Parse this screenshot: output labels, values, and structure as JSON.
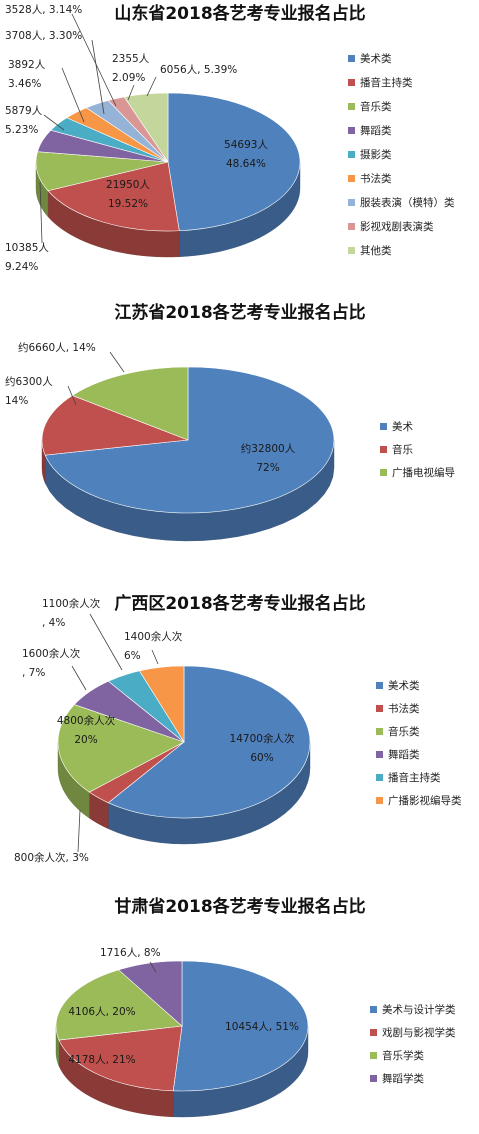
{
  "chart_data": [
    {
      "type": "pie",
      "title": "山东省2018各艺考专业报名占比",
      "series": [
        {
          "name": "美术类",
          "value": 54693,
          "percent": 48.64,
          "color": "#4F81BD"
        },
        {
          "name": "播音主持类",
          "value": 21950,
          "percent": 19.52,
          "color": "#C0504D"
        },
        {
          "name": "音乐类",
          "value": 10385,
          "percent": 9.24,
          "color": "#9BBB59"
        },
        {
          "name": "舞蹈类",
          "value": 5879,
          "percent": 5.23,
          "color": "#8064A2"
        },
        {
          "name": "摄影类",
          "value": 3892,
          "percent": 3.46,
          "color": "#4BACC6"
        },
        {
          "name": "书法类",
          "value": 3708,
          "percent": 3.3,
          "color": "#F79646"
        },
        {
          "name": "服装表演（模特）类",
          "value": 3528,
          "percent": 3.14,
          "color": "#95B3D7"
        },
        {
          "name": "影视戏剧表演类",
          "value": 2355,
          "percent": 2.09,
          "color": "#D99694"
        },
        {
          "name": "其他类",
          "value": 6056,
          "percent": 5.39,
          "color": "#C3D69B"
        }
      ],
      "labels": [
        {
          "line1": "54693人",
          "line2": "48.64%"
        },
        {
          "line1": "21950人",
          "line2": "19.52%"
        },
        {
          "line1": "10385人",
          "line2": "9.24%"
        },
        {
          "line1": "5879人",
          "line2": "5.23%"
        },
        {
          "line1": "3892人",
          "line2": "3.46%"
        },
        {
          "line1": "3708人, 3.30%",
          "line2": ""
        },
        {
          "line1": "3528人, 3.14%",
          "line2": ""
        },
        {
          "line1": "2355人",
          "line2": "2.09%"
        },
        {
          "line1": "6056人, 5.39%",
          "line2": ""
        }
      ]
    },
    {
      "type": "pie",
      "title": "江苏省2018各艺考专业报名占比",
      "series": [
        {
          "name": "美术",
          "value": 32800,
          "percent": 72,
          "color": "#4F81BD"
        },
        {
          "name": "音乐",
          "value": 6300,
          "percent": 14,
          "color": "#C0504D"
        },
        {
          "name": "广播电视编导",
          "value": 6660,
          "percent": 14,
          "color": "#9BBB59"
        }
      ],
      "labels": [
        {
          "line1": "约32800人",
          "line2": "72%"
        },
        {
          "line1": "约6300人",
          "line2": "14%"
        },
        {
          "line1": "约6660人, 14%",
          "line2": ""
        }
      ]
    },
    {
      "type": "pie",
      "title": "广西区2018各艺考专业报名占比",
      "series": [
        {
          "name": "美术类",
          "value": 14700,
          "percent": 60,
          "color": "#4F81BD"
        },
        {
          "name": "书法类",
          "value": 800,
          "percent": 3,
          "color": "#C0504D"
        },
        {
          "name": "音乐类",
          "value": 4800,
          "percent": 20,
          "color": "#9BBB59"
        },
        {
          "name": "舞蹈类",
          "value": 1600,
          "percent": 7,
          "color": "#8064A2"
        },
        {
          "name": "播音主持类",
          "value": 1100,
          "percent": 4,
          "color": "#4BACC6"
        },
        {
          "name": "广播影视编导类",
          "value": 1400,
          "percent": 6,
          "color": "#F79646"
        }
      ],
      "labels": [
        {
          "line1": "14700余人次",
          "line2": "60%"
        },
        {
          "line1": "800余人次, 3%",
          "line2": ""
        },
        {
          "line1": "4800余人次",
          "line2": "20%"
        },
        {
          "line1": "1600余人次",
          "line2": ", 7%"
        },
        {
          "line1": "1100余人次",
          "line2": ", 4%"
        },
        {
          "line1": "1400余人次",
          "line2": "6%"
        }
      ]
    },
    {
      "type": "pie",
      "title": "甘肃省2018各艺考专业报名占比",
      "series": [
        {
          "name": "美术与设计学类",
          "value": 10454,
          "percent": 51,
          "color": "#4F81BD"
        },
        {
          "name": "戏剧与影视学类",
          "value": 4178,
          "percent": 21,
          "color": "#C0504D"
        },
        {
          "name": "音乐学类",
          "value": 4106,
          "percent": 20,
          "color": "#9BBB59"
        },
        {
          "name": "舞蹈学类",
          "value": 1716,
          "percent": 8,
          "color": "#8064A2"
        }
      ],
      "labels": [
        {
          "line1": "10454人, 51%",
          "line2": ""
        },
        {
          "line1": "4178人, 21%",
          "line2": ""
        },
        {
          "line1": "4106人, 20%",
          "line2": ""
        },
        {
          "line1": "1716人, 8%",
          "line2": ""
        }
      ]
    }
  ]
}
